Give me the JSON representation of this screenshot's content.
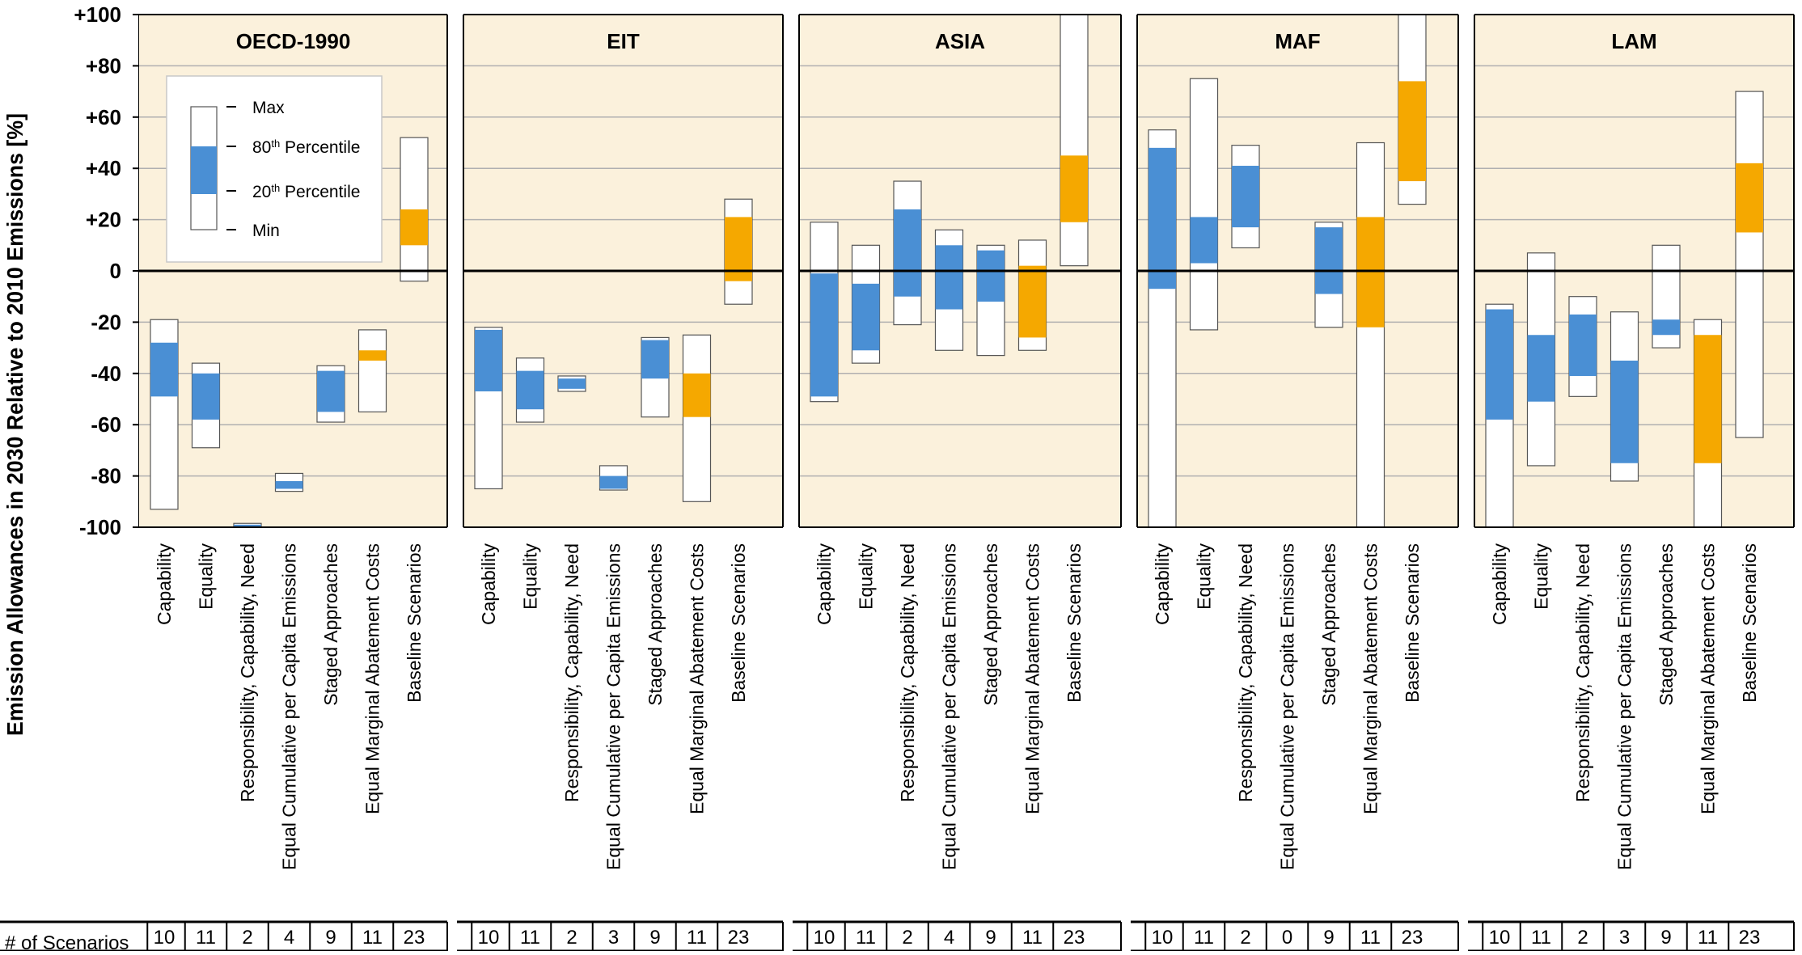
{
  "chart_data": {
    "type": "box-range",
    "ylabel": "Emission Allowances in 2030 Relative to 2010 Emissions [%]",
    "ylim": [
      -100,
      100
    ],
    "yticks": [
      "+100",
      "+80",
      "+60",
      "+40",
      "+20",
      "0",
      "-20",
      "-40",
      "-60",
      "-80",
      "-100"
    ],
    "ytick_values": [
      100,
      80,
      60,
      40,
      20,
      0,
      -20,
      -40,
      -60,
      -80,
      -100
    ],
    "grid": true,
    "categories": [
      "Capability",
      "Equality",
      "Responsibility, Capability, Need",
      "Equal Cumulative per Capita Emissions",
      "Staged Approaches",
      "Equal Marginal Abatement Costs",
      "Baseline Scenarios"
    ],
    "legend": {
      "placement": "top-left inside first panel",
      "max": "Max",
      "p80_prefix": "80",
      "p80_sup": "th",
      "p80_suffix": " Percentile",
      "p20_prefix": "20",
      "p20_sup": "th",
      "p20_suffix": " Percentile",
      "min": "Min"
    },
    "scenarios_label": "# of Scenarios",
    "colors": {
      "background": "#fbf1dc",
      "blue": "#4a8fd4",
      "orange": "#f5a800",
      "gridline": "#b0b0b0",
      "zero_line": "#000000"
    },
    "panels": [
      {
        "name": "OECD-1990",
        "counts": [
          "10",
          "11",
          "2",
          "4",
          "9",
          "11",
          "23"
        ],
        "series": [
          {
            "min": -93,
            "p20": -49,
            "p80": -28,
            "max": -19,
            "color": "blue"
          },
          {
            "min": -69,
            "p20": -58,
            "p80": -40,
            "max": -36,
            "color": "blue"
          },
          {
            "min": -99.5,
            "p20": -99,
            "p80": -99,
            "max": -98.5,
            "color": "blue"
          },
          {
            "min": -86,
            "p20": -85,
            "p80": -82,
            "max": -79,
            "color": "blue"
          },
          {
            "min": -59,
            "p20": -55,
            "p80": -39,
            "max": -37,
            "color": "blue"
          },
          {
            "min": -55,
            "p20": -35,
            "p80": -31,
            "max": -23,
            "color": "orange"
          },
          {
            "min": -4,
            "p20": 10,
            "p80": 24,
            "max": 52,
            "color": "orange"
          }
        ]
      },
      {
        "name": "EIT",
        "counts": [
          "10",
          "11",
          "2",
          "3",
          "9",
          "11",
          "23"
        ],
        "series": [
          {
            "min": -85,
            "p20": -47,
            "p80": -23,
            "max": -22,
            "color": "blue"
          },
          {
            "min": -59,
            "p20": -54,
            "p80": -39,
            "max": -34,
            "color": "blue"
          },
          {
            "min": -47,
            "p20": -46,
            "p80": -42,
            "max": -41,
            "color": "blue"
          },
          {
            "min": -85.5,
            "p20": -85,
            "p80": -80,
            "max": -76,
            "color": "blue"
          },
          {
            "min": -57,
            "p20": -42,
            "p80": -27,
            "max": -26,
            "color": "blue"
          },
          {
            "min": -90,
            "p20": -57,
            "p80": -40,
            "max": -25,
            "color": "orange"
          },
          {
            "min": -13,
            "p20": -4,
            "p80": 21,
            "max": 28,
            "color": "orange"
          }
        ]
      },
      {
        "name": "ASIA",
        "counts": [
          "10",
          "11",
          "2",
          "4",
          "9",
          "11",
          "23"
        ],
        "series": [
          {
            "min": -51,
            "p20": -49,
            "p80": -1,
            "max": 19,
            "color": "blue"
          },
          {
            "min": -36,
            "p20": -31,
            "p80": -5,
            "max": 10,
            "color": "blue"
          },
          {
            "min": -21,
            "p20": -10,
            "p80": 24,
            "max": 35,
            "color": "blue"
          },
          {
            "min": -31,
            "p20": -15,
            "p80": 10,
            "max": 16,
            "color": "blue"
          },
          {
            "min": -33,
            "p20": -12,
            "p80": 8,
            "max": 10,
            "color": "blue"
          },
          {
            "min": -31,
            "p20": -26,
            "p80": 2,
            "max": 12,
            "color": "orange"
          },
          {
            "min": 2,
            "p20": 19,
            "p80": 45,
            "max": 100,
            "color": "orange"
          }
        ]
      },
      {
        "name": "MAF",
        "counts": [
          "10",
          "11",
          "2",
          "0",
          "9",
          "11",
          "23"
        ],
        "series": [
          {
            "min": -100,
            "p20": -7,
            "p80": 48,
            "max": 55,
            "color": "blue"
          },
          {
            "min": -23,
            "p20": 3,
            "p80": 21,
            "max": 75,
            "color": "blue"
          },
          {
            "min": 9,
            "p20": 17,
            "p80": 41,
            "max": 49,
            "color": "blue"
          },
          null,
          {
            "min": -22,
            "p20": -9,
            "p80": 17,
            "max": 19,
            "color": "blue"
          },
          {
            "min": -100,
            "p20": -22,
            "p80": 21,
            "max": 50,
            "color": "orange"
          },
          {
            "min": 26,
            "p20": 35,
            "p80": 74,
            "max": 100,
            "color": "orange"
          }
        ]
      },
      {
        "name": "LAM",
        "counts": [
          "10",
          "11",
          "2",
          "3",
          "9",
          "11",
          "23"
        ],
        "series": [
          {
            "min": -100,
            "p20": -58,
            "p80": -15,
            "max": -13,
            "color": "blue"
          },
          {
            "min": -76,
            "p20": -51,
            "p80": -25,
            "max": 7,
            "color": "blue"
          },
          {
            "min": -49,
            "p20": -41,
            "p80": -17,
            "max": -10,
            "color": "blue"
          },
          {
            "min": -82,
            "p20": -75,
            "p80": -35,
            "max": -16,
            "color": "blue"
          },
          {
            "min": -30,
            "p20": -25,
            "p80": -19,
            "max": 10,
            "color": "blue"
          },
          {
            "min": -100,
            "p20": -75,
            "p80": -25,
            "max": -19,
            "color": "orange"
          },
          {
            "min": -65,
            "p20": 15,
            "p80": 42,
            "max": 70,
            "color": "orange"
          }
        ]
      }
    ]
  }
}
